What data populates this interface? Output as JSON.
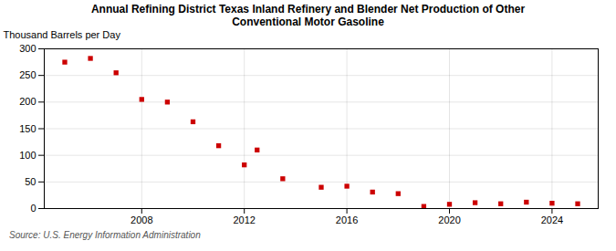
{
  "chart_data": {
    "type": "scatter",
    "title": "Annual Refining District Texas Inland Refinery and Blender Net Production of Other\nConventional Motor Gasoline",
    "ylabel": "Thousand Barrels per Day",
    "annotation": "Source: U.S. Energy Information Administration",
    "x": [
      2005,
      2006,
      2007,
      2008,
      2009,
      2010,
      2011,
      2012,
      2012.5,
      2013.5,
      2015,
      2016,
      2017,
      2018,
      2019,
      2020,
      2021,
      2022,
      2023,
      2024,
      2025
    ],
    "values": [
      275,
      282,
      255,
      205,
      200,
      163,
      118,
      82,
      110,
      56,
      40,
      42,
      31,
      28,
      4,
      8,
      11,
      9,
      12,
      10,
      9
    ],
    "color": "#cc0000",
    "marker": "square",
    "xlim": [
      2004.2,
      2025.8
    ],
    "xticks": [
      2008,
      2012,
      2016,
      2020,
      2024
    ],
    "ylim": [
      0,
      300
    ],
    "yticks": [
      0,
      50,
      100,
      150,
      200,
      250,
      300
    ],
    "grid": true
  }
}
